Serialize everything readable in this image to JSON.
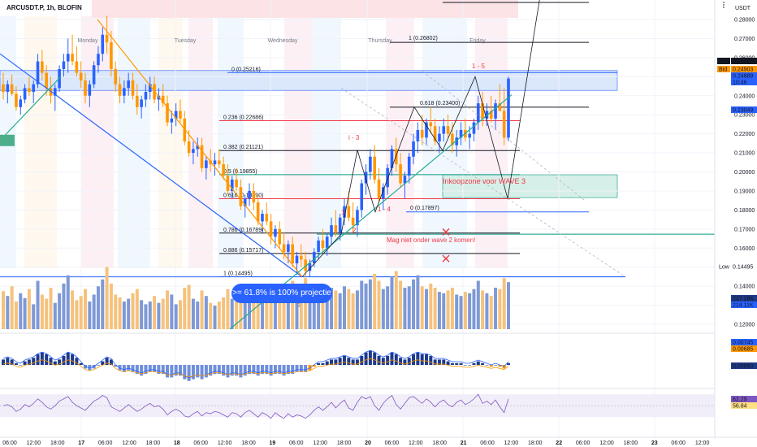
{
  "header": {
    "symbol": "ARCUSDT.P, 1h, BLOFIN",
    "currency": "USDT"
  },
  "colors": {
    "up": "#2962ff",
    "down": "#ff9800",
    "fib_blue": "#2962ff",
    "fib_red": "#f23645",
    "fib_green": "#089981",
    "trend_green": "#22ab94",
    "trend_orange": "#ff9800"
  },
  "icons": [
    "menu-dots-icon"
  ],
  "chart_data": {
    "type": "candlestick",
    "price_axis": {
      "ticks": [
        "0.28000",
        "0.27000",
        "0.26000",
        "0.25000",
        "0.24000",
        "0.23000",
        "0.22000",
        "0.21000",
        "0.20000",
        "0.19000",
        "0.18000",
        "0.17000",
        "0.16000",
        "0.15000",
        "0.14000",
        "0.13000",
        "0.12000"
      ]
    },
    "time_axis": {
      "ticks": [
        "06:00",
        "12:00",
        "18:00",
        "17",
        "06:00",
        "12:00",
        "18:00",
        "18",
        "06:00",
        "12:00",
        "18:00",
        "19",
        "06:00",
        "12:00",
        "18:00",
        "20",
        "06:00",
        "12:00",
        "18:00",
        "21",
        "06:00",
        "12:00",
        "18:00",
        "22",
        "06:00",
        "12:00",
        "18:00",
        "23",
        "06:00",
        "12:00"
      ]
    },
    "day_labels": [
      "Monday",
      "Tuesday",
      "Wednesday",
      "Thursday",
      "Friday"
    ],
    "price_tags": [
      {
        "label": "Ask",
        "value": "0.24916"
      },
      {
        "label": "Bid",
        "value": "0.24903"
      },
      {
        "label": "",
        "value": "0.24889"
      },
      {
        "label": "",
        "value": "10:46"
      },
      {
        "label": "",
        "value": "0.23049"
      },
      {
        "label": "Low",
        "value": "0.14495"
      },
      {
        "label": "",
        "value": "237.28K"
      },
      {
        "label": "",
        "value": "214.11K"
      },
      {
        "label": "",
        "value": "0.00745"
      },
      {
        "label": "",
        "value": "0.00685"
      },
      {
        "label": "",
        "value": "0.00060"
      },
      {
        "label": "",
        "value": "62.29"
      },
      {
        "label": "",
        "value": "56.84"
      }
    ],
    "fib_levels": [
      {
        "ratio": "0",
        "label": "0 (0.25216)",
        "price": 0.25216
      },
      {
        "ratio": "0.236",
        "label": "0.236 (0.22686)",
        "price": 0.22686
      },
      {
        "ratio": "0.382",
        "label": "0.382 (0.21121)",
        "price": 0.21121
      },
      {
        "ratio": "0.5",
        "label": "0.5 (0.19855)",
        "price": 0.19855
      },
      {
        "ratio": "0.618",
        "label": "0.618 (0.18590)",
        "price": 0.1859
      },
      {
        "ratio": "0.786",
        "label": "0.786 (0.16789)",
        "price": 0.16789
      },
      {
        "ratio": "0.886",
        "label": "0.886 (0.15717)",
        "price": 0.15717
      },
      {
        "ratio": "1",
        "label": "1 (0.14495)",
        "price": 0.14495
      }
    ],
    "ext_levels": [
      {
        "label": "1 (0.26802)",
        "price": 0.26802
      },
      {
        "label": "0.618 (0.23400)",
        "price": 0.234
      },
      {
        "label": "0 (0.17897)",
        "price": 0.17897
      }
    ],
    "annotations": {
      "zone_label": "Inkoopzone voor WAVE 3",
      "warning": "Mag niet onder wave 2 komen!",
      "callout": ">= 61.8% is 100% projectie",
      "waves": [
        "1",
        "2",
        "1 - 4",
        "1 - 5",
        "i - 3"
      ],
      "volume_marker": "3"
    },
    "candles": [
      [
        0.246,
        0.252,
        0.238,
        0.242
      ],
      [
        0.242,
        0.248,
        0.236,
        0.246
      ],
      [
        0.246,
        0.251,
        0.24,
        0.241
      ],
      [
        0.241,
        0.245,
        0.232,
        0.234
      ],
      [
        0.234,
        0.24,
        0.23,
        0.238
      ],
      [
        0.238,
        0.246,
        0.236,
        0.244
      ],
      [
        0.244,
        0.25,
        0.24,
        0.242
      ],
      [
        0.242,
        0.248,
        0.236,
        0.246
      ],
      [
        0.246,
        0.262,
        0.244,
        0.258
      ],
      [
        0.258,
        0.264,
        0.248,
        0.252
      ],
      [
        0.252,
        0.256,
        0.24,
        0.244
      ],
      [
        0.244,
        0.25,
        0.236,
        0.24
      ],
      [
        0.24,
        0.246,
        0.232,
        0.244
      ],
      [
        0.244,
        0.256,
        0.242,
        0.254
      ],
      [
        0.254,
        0.262,
        0.25,
        0.258
      ],
      [
        0.258,
        0.27,
        0.252,
        0.262
      ],
      [
        0.262,
        0.272,
        0.256,
        0.258
      ],
      [
        0.258,
        0.266,
        0.25,
        0.252
      ],
      [
        0.252,
        0.258,
        0.244,
        0.248
      ],
      [
        0.248,
        0.252,
        0.236,
        0.24
      ],
      [
        0.24,
        0.248,
        0.234,
        0.246
      ],
      [
        0.246,
        0.258,
        0.244,
        0.256
      ],
      [
        0.256,
        0.266,
        0.252,
        0.262
      ],
      [
        0.262,
        0.276,
        0.258,
        0.272
      ],
      [
        0.272,
        0.282,
        0.262,
        0.268
      ],
      [
        0.268,
        0.274,
        0.25,
        0.254
      ],
      [
        0.254,
        0.258,
        0.242,
        0.246
      ],
      [
        0.246,
        0.25,
        0.236,
        0.24
      ],
      [
        0.24,
        0.248,
        0.236,
        0.244
      ],
      [
        0.244,
        0.252,
        0.24,
        0.248
      ],
      [
        0.248,
        0.252,
        0.238,
        0.24
      ],
      [
        0.24,
        0.246,
        0.23,
        0.234
      ],
      [
        0.234,
        0.24,
        0.228,
        0.238
      ],
      [
        0.238,
        0.246,
        0.234,
        0.242
      ],
      [
        0.242,
        0.25,
        0.238,
        0.246
      ],
      [
        0.246,
        0.25,
        0.236,
        0.238
      ],
      [
        0.238,
        0.244,
        0.232,
        0.24
      ],
      [
        0.24,
        0.246,
        0.234,
        0.236
      ],
      [
        0.236,
        0.24,
        0.224,
        0.226
      ],
      [
        0.226,
        0.232,
        0.22,
        0.228
      ],
      [
        0.228,
        0.236,
        0.224,
        0.232
      ],
      [
        0.232,
        0.238,
        0.226,
        0.228
      ],
      [
        0.228,
        0.232,
        0.214,
        0.216
      ],
      [
        0.216,
        0.222,
        0.208,
        0.21
      ],
      [
        0.21,
        0.216,
        0.204,
        0.212
      ],
      [
        0.212,
        0.218,
        0.208,
        0.214
      ],
      [
        0.214,
        0.218,
        0.2,
        0.202
      ],
      [
        0.202,
        0.208,
        0.196,
        0.206
      ],
      [
        0.206,
        0.212,
        0.2,
        0.204
      ],
      [
        0.204,
        0.21,
        0.198,
        0.206
      ],
      [
        0.206,
        0.212,
        0.202,
        0.204
      ],
      [
        0.204,
        0.208,
        0.196,
        0.198
      ],
      [
        0.198,
        0.204,
        0.188,
        0.19
      ],
      [
        0.19,
        0.198,
        0.186,
        0.196
      ],
      [
        0.196,
        0.202,
        0.19,
        0.192
      ],
      [
        0.192,
        0.196,
        0.18,
        0.182
      ],
      [
        0.182,
        0.188,
        0.176,
        0.186
      ],
      [
        0.186,
        0.194,
        0.182,
        0.19
      ],
      [
        0.19,
        0.194,
        0.18,
        0.184
      ],
      [
        0.184,
        0.188,
        0.172,
        0.174
      ],
      [
        0.174,
        0.18,
        0.168,
        0.178
      ],
      [
        0.178,
        0.184,
        0.172,
        0.174
      ],
      [
        0.174,
        0.178,
        0.162,
        0.166
      ],
      [
        0.166,
        0.172,
        0.16,
        0.17
      ],
      [
        0.17,
        0.174,
        0.16,
        0.162
      ],
      [
        0.162,
        0.168,
        0.154,
        0.158
      ],
      [
        0.158,
        0.164,
        0.152,
        0.162
      ],
      [
        0.162,
        0.166,
        0.15,
        0.152
      ],
      [
        0.152,
        0.158,
        0.146,
        0.156
      ],
      [
        0.156,
        0.162,
        0.15,
        0.154
      ],
      [
        0.154,
        0.158,
        0.145,
        0.148
      ],
      [
        0.148,
        0.154,
        0.145,
        0.152
      ],
      [
        0.152,
        0.16,
        0.15,
        0.158
      ],
      [
        0.158,
        0.166,
        0.154,
        0.164
      ],
      [
        0.164,
        0.17,
        0.158,
        0.16
      ],
      [
        0.16,
        0.168,
        0.156,
        0.166
      ],
      [
        0.166,
        0.176,
        0.162,
        0.172
      ],
      [
        0.172,
        0.18,
        0.166,
        0.168
      ],
      [
        0.168,
        0.178,
        0.164,
        0.176
      ],
      [
        0.176,
        0.186,
        0.172,
        0.182
      ],
      [
        0.182,
        0.19,
        0.174,
        0.176
      ],
      [
        0.176,
        0.184,
        0.168,
        0.172
      ],
      [
        0.172,
        0.182,
        0.166,
        0.18
      ],
      [
        0.18,
        0.196,
        0.176,
        0.194
      ],
      [
        0.194,
        0.204,
        0.188,
        0.2
      ],
      [
        0.2,
        0.212,
        0.196,
        0.208
      ],
      [
        0.208,
        0.214,
        0.194,
        0.196
      ],
      [
        0.196,
        0.202,
        0.184,
        0.186
      ],
      [
        0.186,
        0.194,
        0.18,
        0.192
      ],
      [
        0.192,
        0.204,
        0.188,
        0.202
      ],
      [
        0.202,
        0.214,
        0.198,
        0.212
      ],
      [
        0.212,
        0.218,
        0.2,
        0.204
      ],
      [
        0.204,
        0.21,
        0.192,
        0.194
      ],
      [
        0.194,
        0.2,
        0.186,
        0.198
      ],
      [
        0.198,
        0.21,
        0.194,
        0.208
      ],
      [
        0.208,
        0.22,
        0.204,
        0.216
      ],
      [
        0.216,
        0.226,
        0.21,
        0.222
      ],
      [
        0.222,
        0.23,
        0.214,
        0.218
      ],
      [
        0.218,
        0.228,
        0.214,
        0.226
      ],
      [
        0.226,
        0.234,
        0.22,
        0.224
      ],
      [
        0.224,
        0.228,
        0.214,
        0.216
      ],
      [
        0.216,
        0.224,
        0.21,
        0.22
      ],
      [
        0.22,
        0.228,
        0.216,
        0.224
      ],
      [
        0.224,
        0.23,
        0.218,
        0.22
      ],
      [
        0.22,
        0.226,
        0.21,
        0.214
      ],
      [
        0.214,
        0.222,
        0.208,
        0.218
      ],
      [
        0.218,
        0.226,
        0.214,
        0.222
      ],
      [
        0.222,
        0.228,
        0.216,
        0.218
      ],
      [
        0.218,
        0.224,
        0.212,
        0.22
      ],
      [
        0.22,
        0.228,
        0.216,
        0.226
      ],
      [
        0.226,
        0.24,
        0.222,
        0.236
      ],
      [
        0.236,
        0.242,
        0.224,
        0.228
      ],
      [
        0.228,
        0.236,
        0.224,
        0.232
      ],
      [
        0.232,
        0.24,
        0.226,
        0.228
      ],
      [
        0.228,
        0.238,
        0.222,
        0.236
      ],
      [
        0.236,
        0.246,
        0.232,
        0.232
      ],
      [
        0.232,
        0.244,
        0.214,
        0.218
      ],
      [
        0.218,
        0.25,
        0.216,
        0.249
      ]
    ],
    "volume": [
      0.55,
      0.48,
      0.62,
      0.4,
      0.52,
      0.45,
      0.58,
      0.36,
      0.7,
      0.5,
      0.44,
      0.6,
      0.38,
      0.52,
      0.66,
      0.78,
      0.56,
      0.42,
      0.48,
      0.58,
      0.4,
      0.5,
      0.62,
      0.72,
      0.9,
      0.66,
      0.5,
      0.46,
      0.4,
      0.44,
      0.52,
      0.58,
      0.42,
      0.36,
      0.4,
      0.48,
      0.38,
      0.44,
      0.56,
      0.5,
      0.36,
      0.42,
      0.6,
      0.64,
      0.44,
      0.4,
      0.56,
      0.48,
      0.38,
      0.34,
      0.4,
      0.46,
      0.58,
      0.44,
      0.4,
      0.6,
      0.46,
      0.42,
      0.48,
      0.62,
      0.44,
      0.4,
      0.66,
      0.5,
      0.58,
      0.64,
      0.52,
      0.7,
      0.6,
      0.62,
      0.74,
      0.56,
      0.52,
      0.58,
      0.48,
      0.5,
      0.6,
      0.56,
      0.52,
      0.62,
      0.58,
      0.52,
      0.56,
      0.7,
      0.66,
      0.72,
      0.8,
      0.7,
      0.58,
      0.62,
      0.76,
      0.84,
      0.7,
      0.6,
      0.62,
      0.72,
      0.78,
      0.62,
      0.58,
      0.66,
      0.6,
      0.54,
      0.52,
      0.56,
      0.6,
      0.5,
      0.48,
      0.54,
      0.52,
      0.58,
      0.7,
      0.56,
      0.52,
      0.48,
      0.6,
      0.58,
      0.74,
      0.68
    ],
    "macd_hist": [
      0.3,
      0.4,
      0.3,
      0.1,
      0.0,
      0.2,
      0.3,
      0.4,
      0.6,
      0.7,
      0.6,
      0.4,
      0.2,
      0.3,
      0.5,
      0.7,
      0.6,
      0.4,
      0.1,
      -0.2,
      -0.3,
      -0.2,
      0.0,
      0.2,
      0.4,
      0.3,
      -0.1,
      -0.3,
      -0.4,
      -0.3,
      -0.4,
      -0.5,
      -0.6,
      -0.5,
      -0.4,
      -0.4,
      -0.5,
      -0.5,
      -0.7,
      -0.7,
      -0.6,
      -0.6,
      -0.8,
      -0.9,
      -0.8,
      -0.7,
      -0.8,
      -0.7,
      -0.6,
      -0.5,
      -0.5,
      -0.6,
      -0.7,
      -0.6,
      -0.6,
      -0.7,
      -0.6,
      -0.5,
      -0.5,
      -0.6,
      -0.5,
      -0.5,
      -0.6,
      -0.5,
      -0.5,
      -0.6,
      -0.5,
      -0.5,
      -0.4,
      -0.4,
      -0.4,
      -0.3,
      -0.1,
      0.1,
      0.1,
      0.2,
      0.3,
      0.3,
      0.4,
      0.5,
      0.4,
      0.3,
      0.3,
      0.5,
      0.7,
      0.8,
      0.7,
      0.5,
      0.4,
      0.5,
      0.7,
      0.6,
      0.4,
      0.3,
      0.4,
      0.6,
      0.7,
      0.6,
      0.6,
      0.5,
      0.3,
      0.3,
      0.3,
      0.2,
      0.1,
      0.1,
      0.1,
      0.0,
      0.0,
      0.1,
      0.2,
      0.1,
      0.0,
      -0.1,
      0.0,
      -0.1,
      -0.2,
      0.1
    ],
    "rsi": [
      50,
      52,
      48,
      40,
      44,
      52,
      48,
      54,
      62,
      56,
      48,
      44,
      50,
      58,
      62,
      66,
      56,
      50,
      46,
      42,
      50,
      58,
      62,
      68,
      64,
      48,
      44,
      40,
      46,
      52,
      46,
      40,
      44,
      50,
      54,
      48,
      50,
      44,
      34,
      40,
      44,
      40,
      32,
      30,
      36,
      40,
      32,
      38,
      36,
      40,
      38,
      34,
      30,
      38,
      36,
      30,
      38,
      42,
      36,
      30,
      38,
      34,
      28,
      38,
      32,
      28,
      36,
      30,
      34,
      32,
      28,
      34,
      42,
      48,
      42,
      48,
      56,
      46,
      54,
      60,
      46,
      42,
      56,
      66,
      62,
      66,
      50,
      42,
      54,
      62,
      68,
      52,
      44,
      54,
      64,
      66,
      60,
      54,
      62,
      56,
      48,
      56,
      60,
      52,
      48,
      56,
      60,
      52,
      56,
      62,
      70,
      54,
      58,
      52,
      60,
      48,
      38,
      62
    ]
  }
}
